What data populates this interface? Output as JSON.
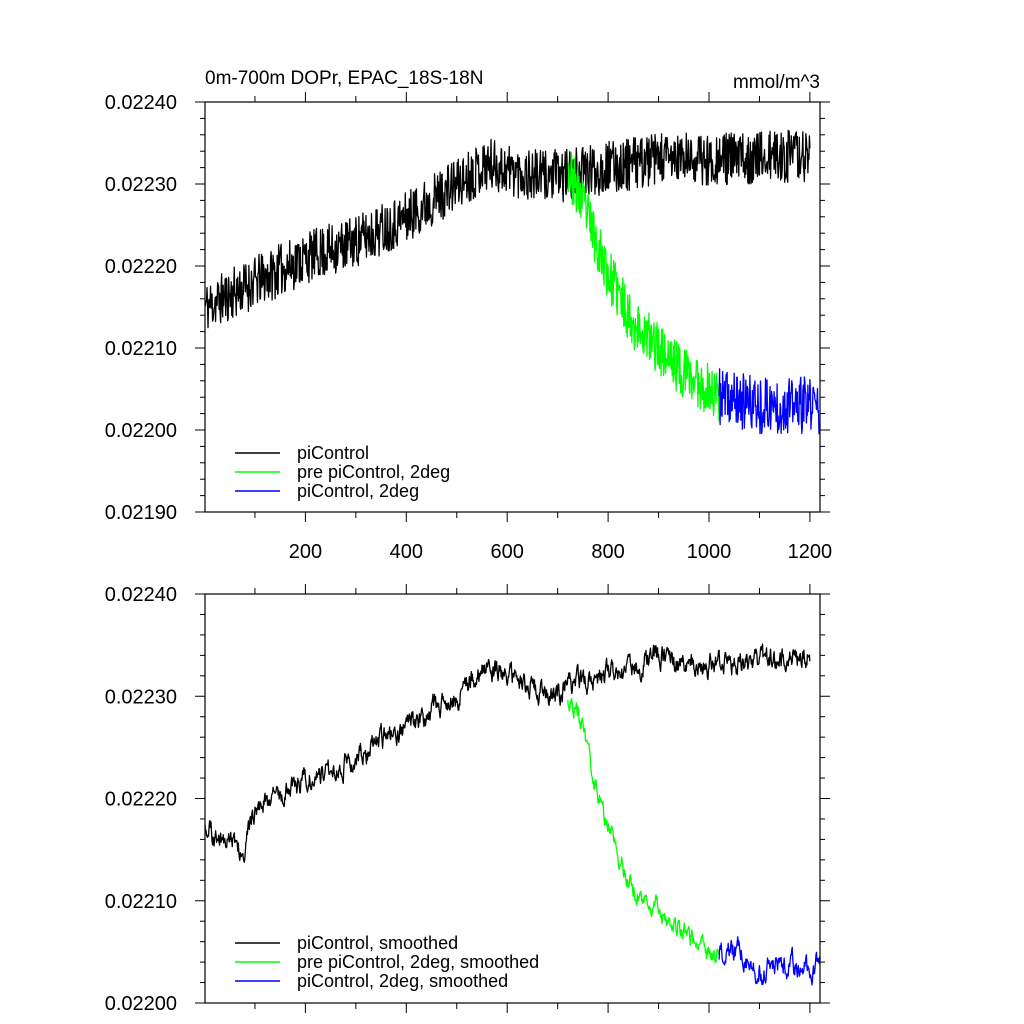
{
  "colors": {
    "black": "#000000",
    "green": "#00ff00",
    "blue": "#0000ff"
  },
  "chart_data": [
    {
      "type": "line",
      "title": "0m-700m DOPr, EPAC_18S-18N",
      "units": "mmol/m^3",
      "xlim": [
        1,
        1220
      ],
      "ylim": [
        0.0219,
        0.0224
      ],
      "x_ticks": [
        200,
        400,
        600,
        800,
        1000,
        1200
      ],
      "x_tick_labels": [
        "200",
        "400",
        "600",
        "800",
        "1000",
        "1200"
      ],
      "y_ticks": [
        0.0219,
        0.022,
        0.0221,
        0.0222,
        0.0223,
        0.0224
      ],
      "y_tick_labels": [
        "0.02190",
        "0.02200",
        "0.02210",
        "0.02220",
        "0.02230",
        "0.02240"
      ],
      "legend_position": "bottom-left",
      "series": [
        {
          "name": "piControl",
          "color": "#000000",
          "x_range": [
            1,
            1200
          ],
          "noise": 3.2e-05,
          "seed": 11,
          "anchors": [
            [
              1,
              0.02215
            ],
            [
              100,
              0.02218
            ],
            [
              200,
              0.02221
            ],
            [
              300,
              0.02223
            ],
            [
              400,
              0.02226
            ],
            [
              500,
              0.0223
            ],
            [
              560,
              0.022325
            ],
            [
              650,
              0.02231
            ],
            [
              720,
              0.02231
            ],
            [
              800,
              0.02232
            ],
            [
              900,
              0.02233
            ],
            [
              1000,
              0.02233
            ],
            [
              1200,
              0.022335
            ]
          ]
        },
        {
          "name": "pre piControl, 2deg",
          "color": "#00ff00",
          "x_range": [
            720,
            1020
          ],
          "noise": 3.2e-05,
          "seed": 23,
          "anchors": [
            [
              720,
              0.02232
            ],
            [
              760,
              0.02226
            ],
            [
              800,
              0.02219
            ],
            [
              850,
              0.02213
            ],
            [
              900,
              0.0221
            ],
            [
              950,
              0.02207
            ],
            [
              1000,
              0.02205
            ],
            [
              1020,
              0.02204
            ]
          ]
        },
        {
          "name": "piControl, 2deg",
          "color": "#0000ff",
          "x_range": [
            1020,
            1220
          ],
          "noise": 3.5e-05,
          "seed": 37,
          "anchors": [
            [
              1020,
              0.02204
            ],
            [
              1100,
              0.02203
            ],
            [
              1220,
              0.02203
            ]
          ]
        }
      ]
    },
    {
      "type": "line",
      "xlim": [
        1,
        1220
      ],
      "ylim": [
        0.022,
        0.0224
      ],
      "x_ticks": [
        200,
        400,
        600,
        800,
        1000,
        1200
      ],
      "x_tick_labels": [],
      "y_ticks": [
        0.022,
        0.0221,
        0.0222,
        0.0223,
        0.0224
      ],
      "y_tick_labels": [
        "0.02200",
        "0.02210",
        "0.02220",
        "0.02230",
        "0.02240"
      ],
      "legend_position": "bottom-left",
      "series": [
        {
          "name": "piControl, smoothed",
          "color": "#000000",
          "x_range": [
            1,
            1200
          ],
          "noise": 9e-06,
          "seed": 51,
          "anchors": [
            [
              1,
              0.02218
            ],
            [
              20,
              0.02216
            ],
            [
              80,
              0.022155
            ],
            [
              100,
              0.02219
            ],
            [
              200,
              0.02222
            ],
            [
              300,
              0.02224
            ],
            [
              400,
              0.02227
            ],
            [
              500,
              0.0223
            ],
            [
              550,
              0.02233
            ],
            [
              600,
              0.02232
            ],
            [
              650,
              0.02231
            ],
            [
              700,
              0.0223
            ],
            [
              720,
              0.02231
            ],
            [
              800,
              0.02232
            ],
            [
              850,
              0.02233
            ],
            [
              900,
              0.02234
            ],
            [
              950,
              0.02233
            ],
            [
              1000,
              0.02233
            ],
            [
              1200,
              0.02234
            ]
          ]
        },
        {
          "name": "pre piControl, 2deg, smoothed",
          "color": "#00ff00",
          "x_range": [
            720,
            1020
          ],
          "noise": 8e-06,
          "seed": 63,
          "anchors": [
            [
              720,
              0.0223
            ],
            [
              740,
              0.02229
            ],
            [
              760,
              0.02224
            ],
            [
              800,
              0.02217
            ],
            [
              850,
              0.02211
            ],
            [
              900,
              0.022095
            ],
            [
              950,
              0.02207
            ],
            [
              1000,
              0.02205
            ],
            [
              1020,
              0.02205
            ]
          ]
        },
        {
          "name": "piControl, 2deg, smoothed",
          "color": "#0000ff",
          "x_range": [
            1020,
            1220
          ],
          "noise": 9e-06,
          "seed": 79,
          "anchors": [
            [
              1020,
              0.02205
            ],
            [
              1060,
              0.02205
            ],
            [
              1100,
              0.02203
            ],
            [
              1150,
              0.02204
            ],
            [
              1200,
              0.02203
            ],
            [
              1220,
              0.02204
            ]
          ]
        }
      ]
    }
  ]
}
